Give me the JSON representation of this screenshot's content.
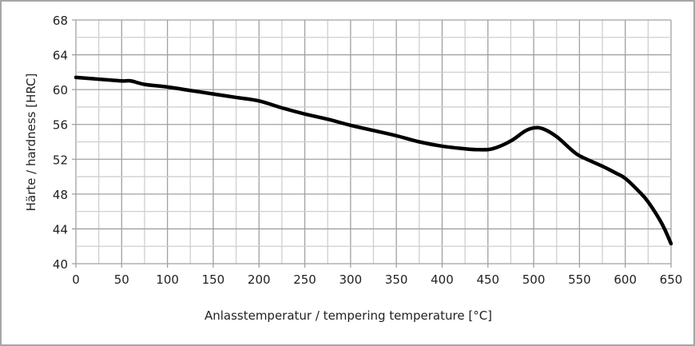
{
  "chart_data": {
    "type": "line",
    "title": "",
    "xlabel": "Anlasstemperatur / tempering temperature [°C]",
    "ylabel": "Härte / hardness [HRC]",
    "xlim": [
      0,
      650
    ],
    "ylim": [
      40,
      68
    ],
    "xticks": [
      0,
      50,
      100,
      150,
      200,
      250,
      300,
      350,
      400,
      450,
      500,
      550,
      600,
      650
    ],
    "yticks": [
      40,
      44,
      48,
      52,
      56,
      60,
      64,
      68
    ],
    "xminor": 25,
    "yminor": 2,
    "grid": true,
    "legend": "none",
    "series": [
      {
        "name": "hardness",
        "color": "#000000",
        "x": [
          0,
          25,
          50,
          60,
          75,
          100,
          125,
          150,
          175,
          200,
          225,
          250,
          275,
          300,
          325,
          350,
          375,
          400,
          425,
          440,
          455,
          475,
          490,
          500,
          510,
          525,
          540,
          550,
          575,
          590,
          600,
          615,
          625,
          640,
          650
        ],
        "y": [
          61.4,
          61.2,
          61.0,
          61.0,
          60.6,
          60.3,
          59.9,
          59.5,
          59.1,
          58.7,
          57.9,
          57.2,
          56.6,
          55.9,
          55.3,
          54.7,
          54.0,
          53.5,
          53.2,
          53.1,
          53.2,
          54.1,
          55.2,
          55.6,
          55.5,
          54.6,
          53.2,
          52.4,
          51.2,
          50.4,
          49.8,
          48.3,
          47.1,
          44.6,
          42.3
        ]
      }
    ]
  }
}
